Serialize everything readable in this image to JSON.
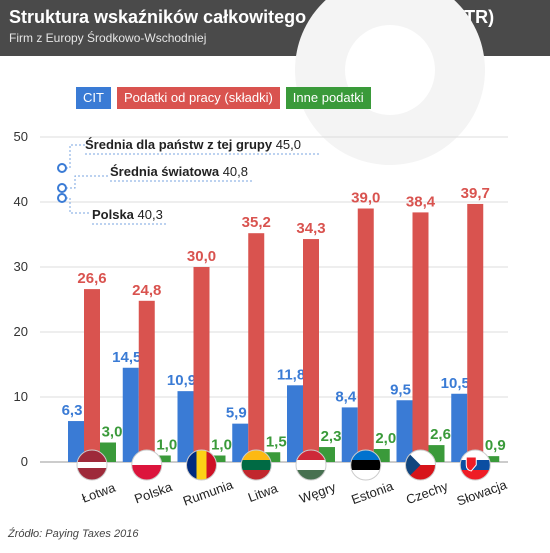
{
  "header": {
    "title": "Struktura wskaźników całkowitego opodatkowania (TTR)",
    "subtitle": "Firm z Europy Środkowo-Wschodniej"
  },
  "colors": {
    "header_bg": "#4a4a4a",
    "CIT": "#3a7bd5",
    "labor": "#d9534f",
    "other": "#3a9a3a"
  },
  "source": "Źródło: Paying Taxes 2016",
  "chart_data": {
    "type": "bar",
    "categories": [
      "Łotwa",
      "Polska",
      "Rumunia",
      "Litwa",
      "Węgry",
      "Estonia",
      "Czechy",
      "Słowacja"
    ],
    "series": [
      {
        "name": "CIT",
        "values": [
          6.3,
          14.5,
          10.9,
          5.9,
          11.8,
          8.4,
          9.5,
          10.5
        ]
      },
      {
        "name": "Podatki od pracy (składki)",
        "values": [
          26.6,
          24.8,
          30.0,
          35.2,
          34.3,
          39.0,
          38.4,
          39.7
        ]
      },
      {
        "name": "Inne podatki",
        "values": [
          3.0,
          1.0,
          1.0,
          1.5,
          2.3,
          2.0,
          2.6,
          0.9
        ]
      }
    ],
    "value_labels": [
      [
        "6,3",
        "14,5",
        "10,9",
        "5,9",
        "11,8",
        "8,4",
        "9,5",
        "10,5"
      ],
      [
        "26,6",
        "24,8",
        "30,0",
        "35,2",
        "34,3",
        "39,0",
        "38,4",
        "39,7"
      ],
      [
        "3,0",
        "1,0",
        "1,0",
        "1,5",
        "2,3",
        "2,0",
        "2,6",
        "0,9"
      ]
    ],
    "ylim": [
      0,
      50
    ],
    "yticks": [
      0,
      10,
      20,
      30,
      40,
      50
    ],
    "grid": true,
    "legend_position": "top-left",
    "annotations": [
      {
        "label": "Średnia dla państw z tej grupy",
        "value_text": "45,0"
      },
      {
        "label": "Średnia światowa",
        "value_text": "40,8"
      },
      {
        "label": "Polska",
        "value_text": "40,3"
      }
    ]
  }
}
